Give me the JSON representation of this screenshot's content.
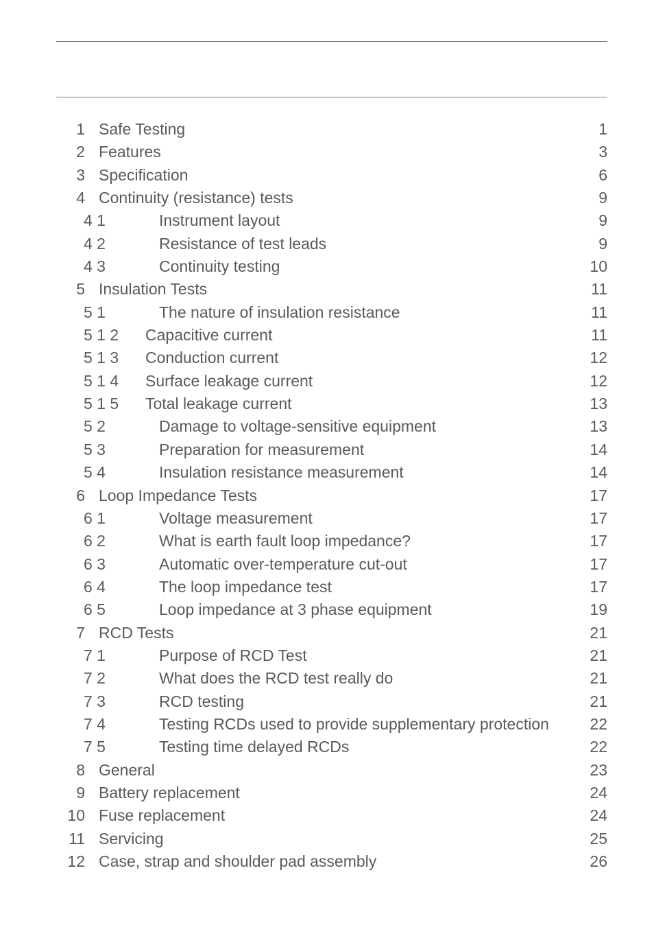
{
  "colors": {
    "text": "#5a5a5a",
    "rule": "#777777",
    "bg": "#ffffff"
  },
  "typography": {
    "font_family": "Arial, Helvetica, sans-serif",
    "font_size_pt": 17,
    "line_height": 1.45
  },
  "toc": [
    {
      "num": " 1",
      "title": "Safe Testing",
      "page": "1",
      "level": 0
    },
    {
      "num": " 2",
      "title": "Features",
      "page": "3",
      "level": 0
    },
    {
      "num": " 3",
      "title": "Specification",
      "page": "6",
      "level": 0
    },
    {
      "num": " 4",
      "title": "Continuity (resistance) tests",
      "page": "9",
      "level": 0
    },
    {
      "num": "4 1",
      "title": "Instrument layout",
      "page": "9",
      "level": 1
    },
    {
      "num": "4 2",
      "title": "Resistance of test leads ",
      "page": "9",
      "level": 1
    },
    {
      "num": "4 3",
      "title": "Continuity testing ",
      "page": "10",
      "level": 1
    },
    {
      "num": " 5",
      "title": "Insulation Tests",
      "page": "11",
      "level": 0
    },
    {
      "num": "5 1",
      "title": "The nature of insulation resistance",
      "page": "11",
      "level": 1
    },
    {
      "num": "5 1 2",
      "title": "Capacitive current",
      "page": "11",
      "level": 2
    },
    {
      "num": "5 1 3",
      "title": "Conduction current",
      "page": "12",
      "level": 2
    },
    {
      "num": "5 1 4",
      "title": "Surface leakage current",
      "page": "12",
      "level": 2
    },
    {
      "num": "5 1 5",
      "title": "Total leakage current",
      "page": "13",
      "level": 2
    },
    {
      "num": "5 2",
      "title": "Damage to voltage-sensitive equipment",
      "page": "13",
      "level": 1
    },
    {
      "num": "5 3",
      "title": "Preparation for measurement",
      "page": "14",
      "level": 1
    },
    {
      "num": "5 4",
      "title": "Insulation resistance measurement",
      "page": "14",
      "level": 1
    },
    {
      "num": " 6",
      "title": "Loop Impedance Tests",
      "page": "17",
      "level": 0
    },
    {
      "num": "6 1",
      "title": "Voltage measurement",
      "page": "17",
      "level": 1
    },
    {
      "num": "6 2",
      "title": "What is earth fault loop impedance?",
      "page": "17",
      "level": 1
    },
    {
      "num": "6 3",
      "title": "Automatic over-temperature cut-out",
      "page": "17",
      "level": 1
    },
    {
      "num": "6 4",
      "title": "The loop impedance test",
      "page": "17",
      "level": 1
    },
    {
      "num": "6 5",
      "title": "Loop impedance at 3 phase equipment",
      "page": "19",
      "level": 1
    },
    {
      "num": " 7",
      "title": "RCD Tests",
      "page": "21",
      "level": 0
    },
    {
      "num": "7 1",
      "title": "Purpose of RCD Test",
      "page": "21",
      "level": 1
    },
    {
      "num": "7 2",
      "title": "What does the RCD test really do   ",
      "page": "21",
      "level": 1
    },
    {
      "num": "7 3",
      "title": "RCD testing",
      "page": "21",
      "level": 1
    },
    {
      "num": "7 4",
      "title": "Testing RCDs used to provide supplementary protection",
      "page": "22",
      "level": 1,
      "leader": "tight"
    },
    {
      "num": "7 5",
      "title": "Testing time delayed RCDs",
      "page": "22",
      "level": 1
    },
    {
      "num": " 8",
      "title": "General",
      "page": "23",
      "level": 0
    },
    {
      "num": " 9",
      "title": "Battery replacement",
      "page": "24",
      "level": 0
    },
    {
      "num": "10",
      "title": "Fuse replacement",
      "page": "24",
      "level": 0
    },
    {
      "num": "11",
      "title": "Servicing",
      "page": "25",
      "level": 0
    },
    {
      "num": "12",
      "title": "Case, strap and shoulder pad assembly",
      "page": "26",
      "level": 0
    }
  ]
}
